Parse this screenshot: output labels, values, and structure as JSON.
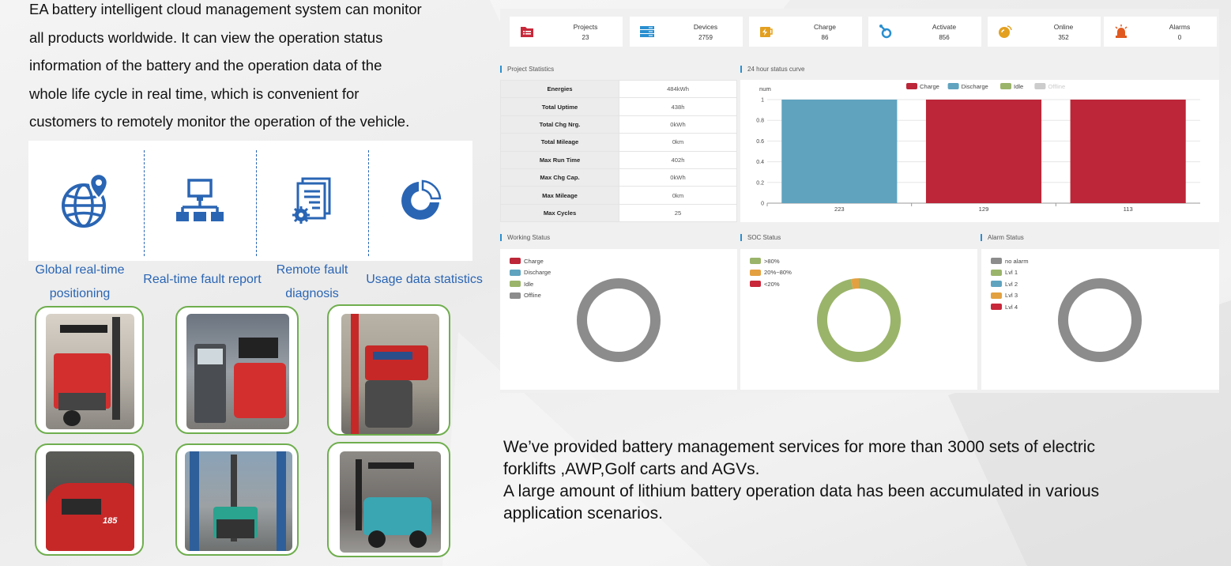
{
  "intro": {
    "lines": [
      "EA battery intelligent cloud management system can monitor",
      "all products worldwide. It can view the operation status",
      "information of the battery and the operation data of the",
      "whole life cycle in real time, which is convenient for",
      "customers to remotely monitor the operation of the vehicle."
    ]
  },
  "features": [
    {
      "icon": "globe-location-icon",
      "line1": "Global real-time",
      "line2": "positioning"
    },
    {
      "icon": "network-hierarchy-icon",
      "line1": "Real-time fault report",
      "line2": ""
    },
    {
      "icon": "document-gear-icon",
      "line1": "Remote fault",
      "line2": "diagnosis"
    },
    {
      "icon": "donut-chart-icon",
      "line1": "Usage data statistics",
      "line2": ""
    }
  ],
  "photos": [
    "reach-truck-photo",
    "pallet-truck-charger-photo",
    "stacker-red-photo",
    "forklift-185-photo",
    "reach-stacker-warehouse-photo",
    "blue-forklift-photo"
  ],
  "dashboard": {
    "stats": [
      {
        "label": "Projects",
        "value": "23",
        "icon": "project-folder-icon",
        "color": "#c8283a"
      },
      {
        "label": "Devices",
        "value": "2759",
        "icon": "server-rack-icon",
        "color": "#2a8fd0"
      },
      {
        "label": "Charge",
        "value": "86",
        "icon": "battery-charge-icon",
        "color": "#e3a020"
      },
      {
        "label": "Activate",
        "value": "856",
        "icon": "activate-link-icon",
        "color": "#2a8fd0"
      },
      {
        "label": "Online",
        "value": "352",
        "icon": "online-signal-icon",
        "color": "#e3a020"
      },
      {
        "label": "Alarms",
        "value": "0",
        "icon": "alarm-siren-icon",
        "color": "#e05a20"
      }
    ],
    "project_statistics": {
      "title": "Project Statistics",
      "rows": [
        {
          "key": "Energies",
          "value": "484kWh"
        },
        {
          "key": "Total Uptime",
          "value": "438h"
        },
        {
          "key": "Total Chg Nrg.",
          "value": "0kWh"
        },
        {
          "key": "Total Mileage",
          "value": "0km"
        },
        {
          "key": "Max Run Time",
          "value": "402h"
        },
        {
          "key": "Max Chg Cap.",
          "value": "0kWh"
        },
        {
          "key": "Max Mileage",
          "value": "0km"
        },
        {
          "key": "Max Cycles",
          "value": "25"
        }
      ]
    },
    "status_curve": {
      "title": "24 hour status curve",
      "chart_data": {
        "type": "bar",
        "ylabel": "num",
        "ylim": [
          0,
          1
        ],
        "yticks": [
          "0",
          "0.2",
          "0.4",
          "0.6",
          "0.8",
          "1"
        ],
        "categories": [
          "223",
          "129",
          "113"
        ],
        "values": [
          1,
          1,
          1
        ],
        "bar_colors": [
          "#5fa3bf",
          "#bc2638",
          "#bc2638"
        ],
        "legend": [
          {
            "name": "Charge",
            "color": "#bc2638"
          },
          {
            "name": "Discharge",
            "color": "#5fa3bf"
          },
          {
            "name": "Idle",
            "color": "#9ab46a"
          },
          {
            "name": "Offline",
            "color": "#cccccc"
          }
        ],
        "legend_position": "top-center",
        "grid": true
      }
    },
    "working_status": {
      "title": "Working Status",
      "legend": [
        {
          "name": "Charge",
          "color": "#bc2638"
        },
        {
          "name": "Discharge",
          "color": "#5fa3bf"
        },
        {
          "name": "Idle",
          "color": "#9ab46a"
        },
        {
          "name": "Offline",
          "color": "#8c8c8c"
        }
      ],
      "chart_data": {
        "type": "pie",
        "slices": [
          {
            "name": "Offline",
            "value": 100,
            "color": "#8c8c8c"
          }
        ]
      }
    },
    "soc_status": {
      "title": "SOC Status",
      "legend": [
        {
          "name": ">80%",
          "color": "#9ab46a"
        },
        {
          "name": "20%~80%",
          "color": "#e3a040"
        },
        {
          "name": "<20%",
          "color": "#c8283a"
        }
      ],
      "chart_data": {
        "type": "pie",
        "slices": [
          {
            "name": ">80%",
            "value": 97,
            "color": "#9ab46a"
          },
          {
            "name": "20%~80%",
            "value": 3,
            "color": "#e3a040"
          }
        ]
      }
    },
    "alarm_status": {
      "title": "Alarm Status",
      "legend": [
        {
          "name": "no alarm",
          "color": "#8c8c8c"
        },
        {
          "name": "Lvl 1",
          "color": "#9ab46a"
        },
        {
          "name": "Lvl 2",
          "color": "#5fa3bf"
        },
        {
          "name": "Lvl 3",
          "color": "#e3a040"
        },
        {
          "name": "Lvl 4",
          "color": "#c8283a"
        }
      ],
      "chart_data": {
        "type": "pie",
        "slices": [
          {
            "name": "no alarm",
            "value": 100,
            "color": "#8c8c8c"
          }
        ]
      }
    }
  },
  "summary": {
    "line1": "We’ve provided battery management services for more than 3000 sets of electric",
    "line2": "forklifts ,AWP,Golf carts and AGVs.",
    "line3": "A large amount of lithium battery operation data has been accumulated in various",
    "line4": "application scenarios."
  }
}
